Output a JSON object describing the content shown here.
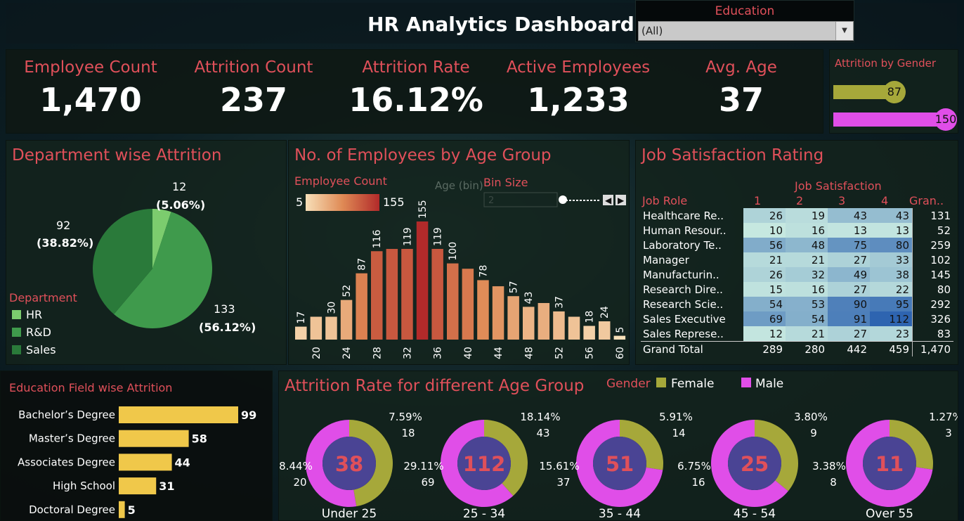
{
  "header": {
    "title": "HR Analytics Dashboard"
  },
  "filter": {
    "label": "Education",
    "value": "(All)"
  },
  "kpis": [
    {
      "label": "Employee Count",
      "value": "1,470"
    },
    {
      "label": "Attrition Count",
      "value": "237"
    },
    {
      "label": "Attrition Rate",
      "value": "16.12%"
    },
    {
      "label": "Active Employees",
      "value": "1,233"
    },
    {
      "label": "Avg. Age",
      "value": "37"
    }
  ],
  "gender": {
    "title": "Attrition by Gender",
    "female": 87,
    "male": 150,
    "female_label": "87",
    "male_label": "150",
    "colors": {
      "female": "#a6a83a",
      "male": "#e04ee8"
    }
  },
  "department": {
    "title": "Department wise Attrition",
    "legend_title": "Department",
    "slices": [
      {
        "name": "HR",
        "value": 12,
        "count_label": "12",
        "pct_label": "(5.06%)",
        "color": "#7ccc6e"
      },
      {
        "name": "R&D",
        "value": 133,
        "count_label": "133",
        "pct_label": "(56.12%)",
        "color": "#3f9a4c"
      },
      {
        "name": "Sales",
        "value": 92,
        "count_label": "92",
        "pct_label": "(38.82%)",
        "color": "#2a7a3a"
      }
    ]
  },
  "age_group": {
    "title": "No. of Employees by Age Group",
    "legend_title": "Employee Count",
    "legend_min": "5",
    "legend_max": "155",
    "ghost_label": "Age (bin)",
    "bin_label": "Bin Size",
    "bin_value": "2",
    "chart_data": {
      "type": "bar",
      "x": [
        18,
        20,
        22,
        24,
        26,
        28,
        30,
        32,
        34,
        36,
        38,
        40,
        42,
        44,
        46,
        48,
        50,
        52,
        54,
        56,
        58,
        60
      ],
      "values": [
        17,
        30,
        30,
        52,
        87,
        116,
        119,
        119,
        155,
        119,
        100,
        93,
        78,
        70,
        57,
        43,
        48,
        37,
        30,
        18,
        24,
        5
      ],
      "labels": [
        "17",
        "",
        "30",
        "52",
        "87",
        "116",
        "",
        "119",
        "155",
        "119",
        "100",
        "",
        "78",
        "",
        "57",
        "43",
        "",
        "37",
        "",
        "18",
        "24",
        "5"
      ],
      "ticks": [
        "20",
        "24",
        "28",
        "32",
        "36",
        "40",
        "44",
        "48",
        "52",
        "56",
        "60"
      ],
      "ylim": [
        0,
        155
      ]
    }
  },
  "job_satisfaction": {
    "title": "Job Satisfaction Rating",
    "col_group": "Job Satisfaction",
    "headers": [
      "Job Role",
      "1",
      "2",
      "3",
      "4",
      "Gran.."
    ],
    "rows": [
      {
        "role": "Healthcare Re..",
        "v": [
          "26",
          "19",
          "43",
          "43"
        ],
        "total": "131"
      },
      {
        "role": "Human Resour..",
        "v": [
          "10",
          "16",
          "13",
          "13"
        ],
        "total": "52"
      },
      {
        "role": "Laboratory Te..",
        "v": [
          "56",
          "48",
          "75",
          "80"
        ],
        "total": "259"
      },
      {
        "role": "Manager",
        "v": [
          "21",
          "21",
          "27",
          "33"
        ],
        "total": "102"
      },
      {
        "role": "Manufacturin..",
        "v": [
          "26",
          "32",
          "49",
          "38"
        ],
        "total": "145"
      },
      {
        "role": "Research Dire..",
        "v": [
          "15",
          "16",
          "27",
          "22"
        ],
        "total": "80"
      },
      {
        "role": "Research Scie..",
        "v": [
          "54",
          "53",
          "90",
          "95"
        ],
        "total": "292"
      },
      {
        "role": "Sales Executive",
        "v": [
          "69",
          "54",
          "91",
          "112"
        ],
        "total": "326"
      },
      {
        "role": "Sales Represe..",
        "v": [
          "12",
          "21",
          "27",
          "23"
        ],
        "total": "83"
      }
    ],
    "grand_total": {
      "role": "Grand Total",
      "v": [
        "289",
        "280",
        "442",
        "459"
      ],
      "total": "1,470"
    }
  },
  "education_field": {
    "title": "Education Field wise Attrition",
    "chart_data": {
      "type": "bar",
      "categories": [
        "Bachelor’s Degree",
        "Master’s Degree",
        "Associates Degree",
        "High School",
        "Doctoral Degree"
      ],
      "values": [
        99,
        58,
        44,
        31,
        5
      ],
      "color": "#f0c84a"
    }
  },
  "attrition_age": {
    "title": "Attrition Rate for different Age Group",
    "legend_title": "Gender",
    "legend": [
      {
        "name": "Female",
        "color": "#a6a83a"
      },
      {
        "name": "Male",
        "color": "#e04ee8"
      }
    ],
    "chart_data": {
      "type": "pie",
      "groups": [
        {
          "name": "Under 25",
          "total": "38",
          "female": 18,
          "male": 20,
          "f_pct": "7.59%",
          "f_cnt": "18",
          "m_pct": "8.44%",
          "m_cnt": "20"
        },
        {
          "name": "25 - 34",
          "total": "112",
          "female": 43,
          "male": 69,
          "f_pct": "18.14%",
          "f_cnt": "43",
          "m_pct": "29.11%",
          "m_cnt": "69"
        },
        {
          "name": "35 - 44",
          "total": "51",
          "female": 14,
          "male": 37,
          "f_pct": "5.91%",
          "f_cnt": "14",
          "m_pct": "15.61%",
          "m_cnt": "37"
        },
        {
          "name": "45 - 54",
          "total": "25",
          "female": 9,
          "male": 16,
          "f_pct": "3.80%",
          "f_cnt": "9",
          "m_pct": "6.75%",
          "m_cnt": "16"
        },
        {
          "name": "Over 55",
          "total": "11",
          "female": 3,
          "male": 8,
          "f_pct": "1.27%",
          "f_cnt": "3",
          "m_pct": "3.38%",
          "m_cnt": "8"
        }
      ]
    }
  }
}
